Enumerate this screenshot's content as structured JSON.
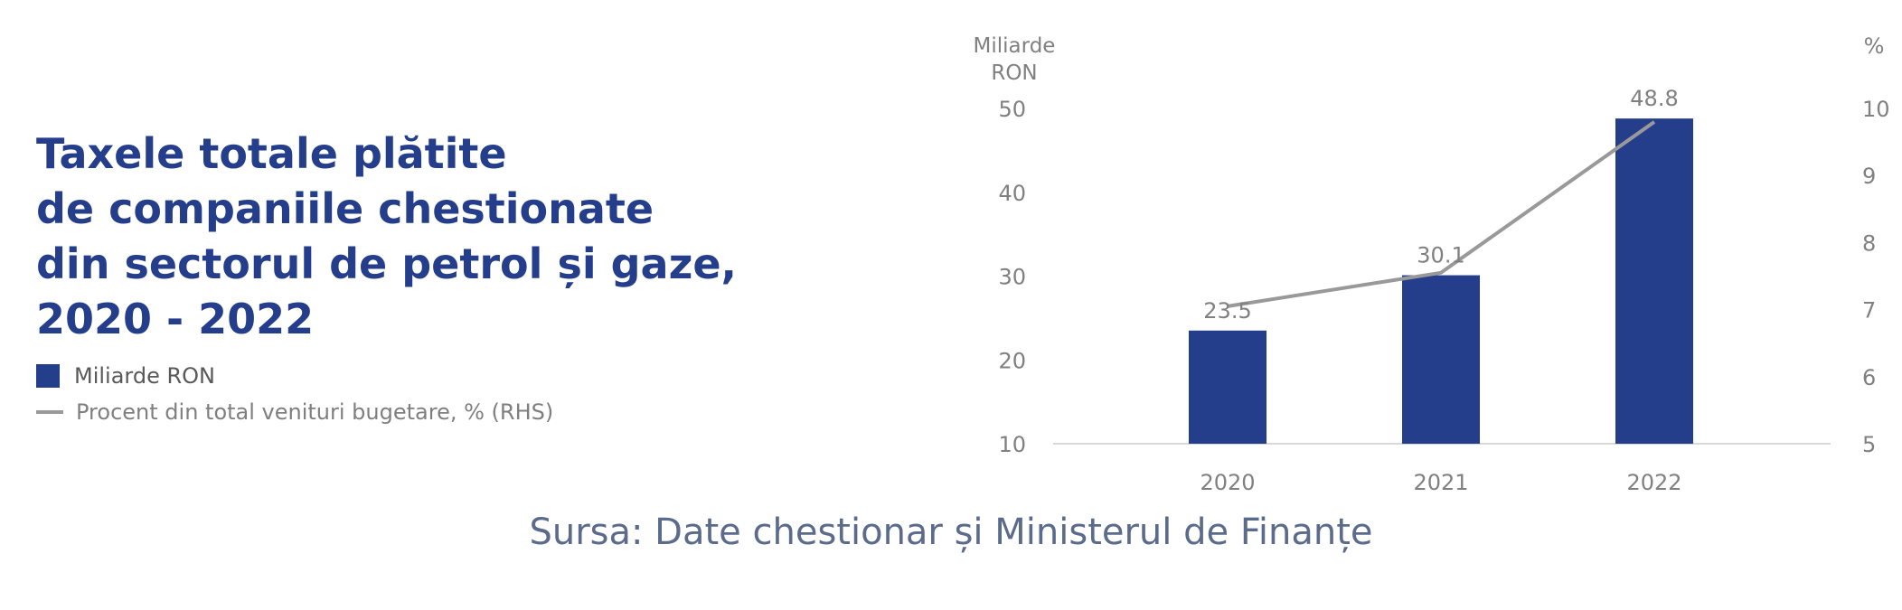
{
  "title_lines": [
    "Taxele totale plătite",
    "de companiile chestionate",
    "din sectorul de petrol și gaze,",
    "2020 - 2022"
  ],
  "legend": {
    "bar_label": "Miliarde RON",
    "line_label": "Procent din total venituri bugetare, % (RHS)"
  },
  "source": "Sursa: Date chestionar și Ministerul de Finanțe",
  "colors": {
    "bar": "#253e8c",
    "line": "#999999",
    "title": "#253e8c",
    "axis_text": "#808080"
  },
  "chart_data": {
    "type": "bar",
    "categories": [
      "2020",
      "2021",
      "2022"
    ],
    "series": [
      {
        "name": "Miliarde RON",
        "type": "bar",
        "axis": "left",
        "values": [
          23.5,
          30.1,
          48.8
        ],
        "data_labels": [
          "23.5",
          "30.1",
          "48.8"
        ]
      },
      {
        "name": "Procent din total venituri bugetare, % (RHS)",
        "type": "line",
        "axis": "right",
        "values": [
          7.05,
          7.55,
          9.8
        ]
      }
    ],
    "y_left": {
      "label_lines": [
        "Miliarde",
        "RON"
      ],
      "ticks": [
        "10",
        "20",
        "30",
        "40",
        "50"
      ],
      "ylim": [
        10,
        50
      ]
    },
    "y_right": {
      "label": "%",
      "ticks": [
        "5",
        "6",
        "7",
        "8",
        "9",
        "10"
      ],
      "ylim": [
        5,
        10
      ]
    },
    "grid": false,
    "legend_position": "left"
  }
}
